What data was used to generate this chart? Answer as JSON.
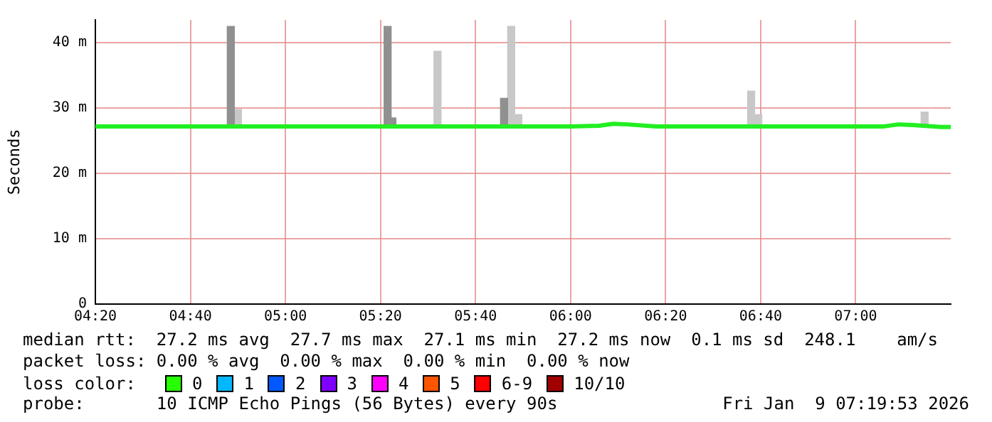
{
  "chart_data": {
    "type": "line",
    "ylabel": "Seconds",
    "xlim": [
      4.3333,
      7.3333
    ],
    "xticks": [
      {
        "value": 4.3333,
        "label": "04:20"
      },
      {
        "value": 4.6667,
        "label": "04:40"
      },
      {
        "value": 5,
        "label": "05:00"
      },
      {
        "value": 5.3333,
        "label": "05:20"
      },
      {
        "value": 5.6667,
        "label": "05:40"
      },
      {
        "value": 6,
        "label": "06:00"
      },
      {
        "value": 6.3333,
        "label": "06:20"
      },
      {
        "value": 6.6667,
        "label": "06:40"
      },
      {
        "value": 7,
        "label": "07:00"
      }
    ],
    "ylim": [
      0,
      43.5
    ],
    "yticks": [
      0,
      {
        "value": 10,
        "label": "10 m"
      },
      {
        "value": 20,
        "label": "20 m"
      },
      {
        "value": 30,
        "label": "30 m"
      },
      {
        "value": 40,
        "label": "40 m"
      }
    ],
    "grid": true,
    "legend": false,
    "marker": "none",
    "line_style": "solid",
    "series": [
      {
        "type": "bar",
        "color": "#909090",
        "x": [
          4.8083,
          5.3583,
          5.375,
          5.7667
        ],
        "base": [
          27.2,
          27.2,
          27.2,
          27.2
        ],
        "values": [
          15.3,
          15.3,
          1.3,
          4.3
        ]
      },
      {
        "type": "bar",
        "color": "#c8c8c8",
        "x": [
          4.8333,
          5.5333,
          5.7917,
          5.8167,
          6.6333,
          6.6583,
          7.2417
        ],
        "base": [
          27.2,
          27.2,
          27.2,
          27.2,
          27.2,
          27.2,
          27.2
        ],
        "values": [
          2.6,
          11.5,
          15.3,
          1.8,
          5.4,
          1.8,
          2.2
        ]
      },
      {
        "color": "#22ee22",
        "x": [
          4.3333,
          4.6,
          4.8,
          5.1,
          5.4,
          5.7,
          6.0,
          6.1,
          6.15,
          6.2,
          6.3,
          6.5,
          6.8,
          7.0,
          7.1,
          7.15,
          7.2,
          7.3,
          7.3333
        ],
        "values": [
          27.2,
          27.2,
          27.2,
          27.2,
          27.2,
          27.2,
          27.2,
          27.3,
          27.6,
          27.5,
          27.2,
          27.2,
          27.2,
          27.2,
          27.2,
          27.5,
          27.4,
          27.1,
          27.1
        ]
      }
    ],
    "annotations": [
      "median rtt:  27.2 ms avg  27.7 ms max  27.1 ms min  27.2 ms now  0.1 ms sd  248.1    am/s",
      "packet loss: 0.00 % avg  0.00 % max  0.00 % min  0.00 % now",
      "loss color:",
      "0",
      "1",
      "2",
      "3",
      "4",
      "5",
      "6-9",
      "10/10",
      "probe:       10 ICMP Echo Pings (56 Bytes) every 90s",
      "Fri Jan  9 07:19:53 2026"
    ]
  }
}
